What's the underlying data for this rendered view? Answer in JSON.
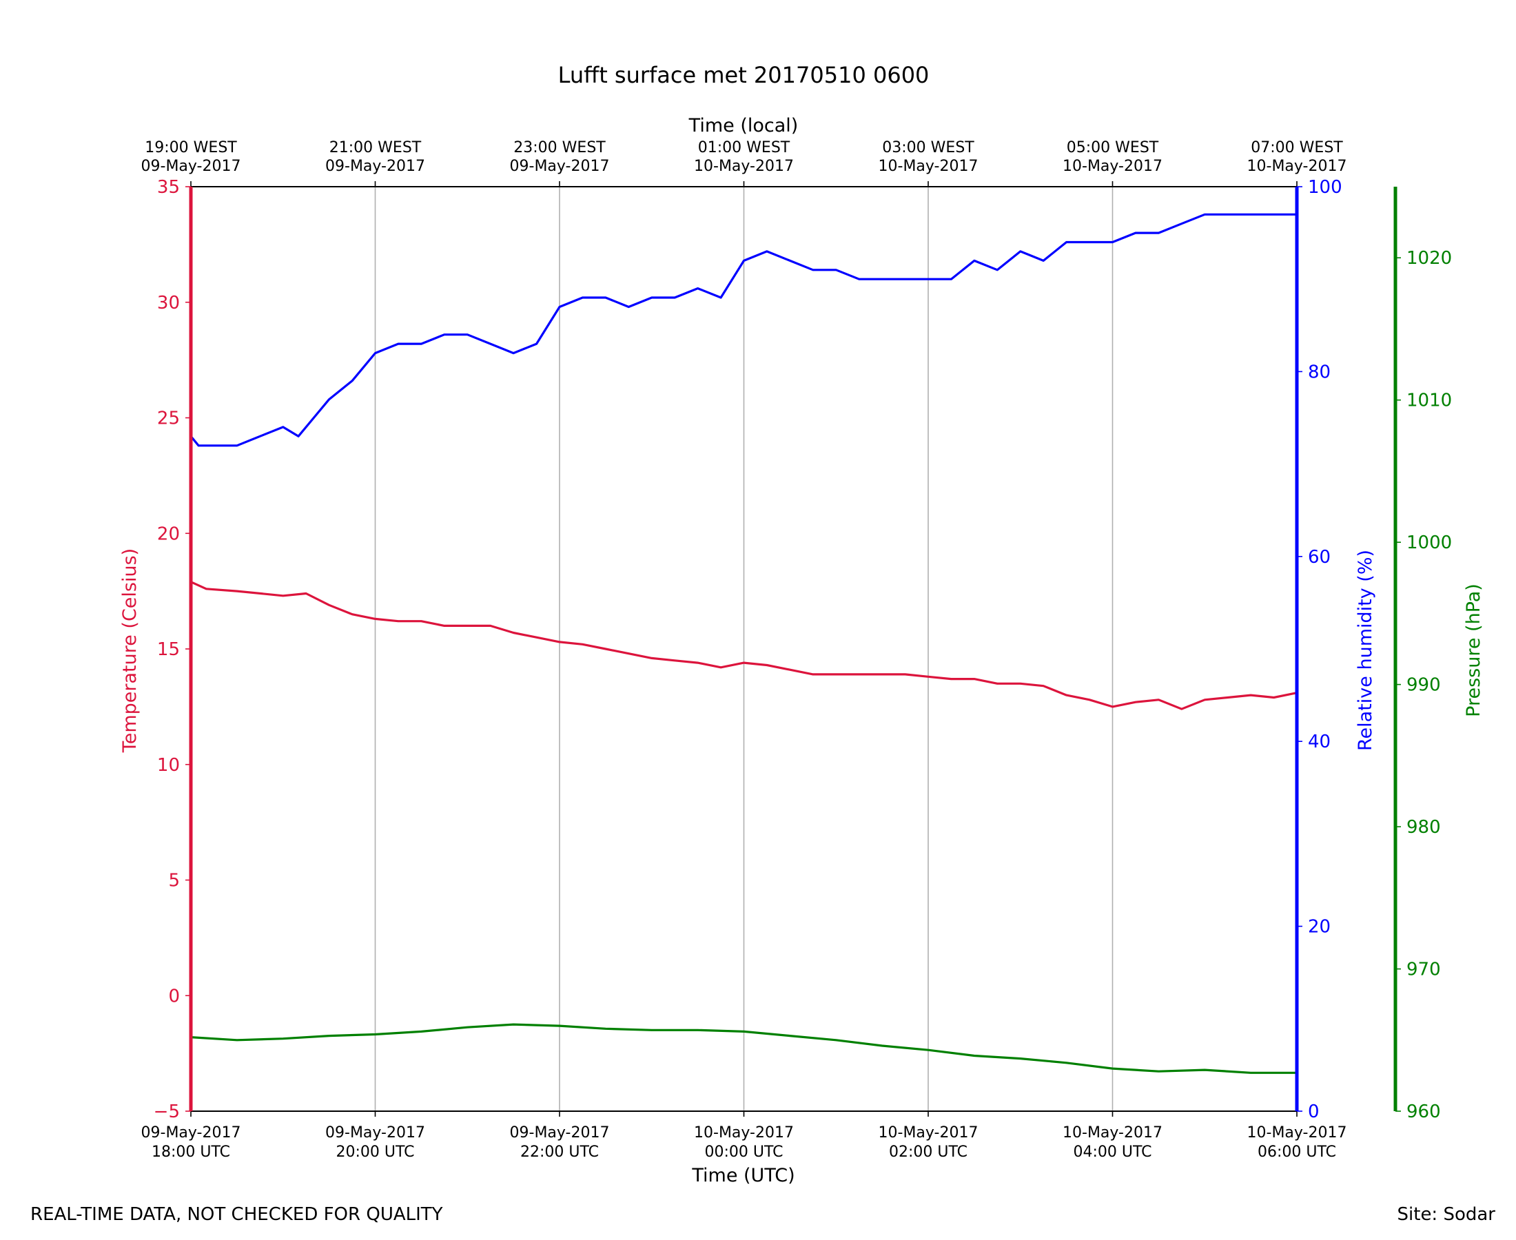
{
  "chart_data": {
    "type": "line",
    "title": "Lufft surface met 20170510 0600",
    "xlabel": "Time (UTC)",
    "x2label": "Time (local)",
    "xlim": [
      "2017-05-09T18:00",
      "2017-05-10T06:00"
    ],
    "grid": "vertical",
    "xticks": [
      {
        "t": "2017-05-09T18:00",
        "utc": [
          "09-May-2017",
          "18:00 UTC"
        ],
        "local": [
          "19:00 WEST",
          "09-May-2017"
        ]
      },
      {
        "t": "2017-05-09T20:00",
        "utc": [
          "09-May-2017",
          "20:00 UTC"
        ],
        "local": [
          "21:00 WEST",
          "09-May-2017"
        ]
      },
      {
        "t": "2017-05-09T22:00",
        "utc": [
          "09-May-2017",
          "22:00 UTC"
        ],
        "local": [
          "23:00 WEST",
          "09-May-2017"
        ]
      },
      {
        "t": "2017-05-10T00:00",
        "utc": [
          "10-May-2017",
          "00:00 UTC"
        ],
        "local": [
          "01:00 WEST",
          "10-May-2017"
        ]
      },
      {
        "t": "2017-05-10T02:00",
        "utc": [
          "10-May-2017",
          "02:00 UTC"
        ],
        "local": [
          "03:00 WEST",
          "10-May-2017"
        ]
      },
      {
        "t": "2017-05-10T04:00",
        "utc": [
          "10-May-2017",
          "04:00 UTC"
        ],
        "local": [
          "05:00 WEST",
          "10-May-2017"
        ]
      },
      {
        "t": "2017-05-10T06:00",
        "utc": [
          "10-May-2017",
          "06:00 UTC"
        ],
        "local": [
          "07:00 WEST",
          "10-May-2017"
        ]
      }
    ],
    "axes": {
      "temperature": {
        "label": "Temperature (Celsius)",
        "ylim": [
          -5,
          35
        ],
        "ticks": [
          -5,
          0,
          5,
          10,
          15,
          20,
          25,
          30,
          35
        ],
        "color": "#dc143c"
      },
      "humidity": {
        "label": "Relative humidity (%)",
        "ylim": [
          0,
          100
        ],
        "ticks": [
          0,
          20,
          40,
          60,
          80,
          100
        ],
        "color": "#0000ff"
      },
      "pressure": {
        "label": "Pressure (hPa)",
        "ylim": [
          960,
          1025
        ],
        "ticks": [
          960,
          970,
          980,
          990,
          1000,
          1010,
          1020
        ],
        "color": "#008000"
      }
    },
    "series": [
      {
        "axis": "temperature",
        "color": "#dc143c",
        "x": [
          "2017-05-09T18:00",
          "2017-05-09T18:10",
          "2017-05-09T18:30",
          "2017-05-09T19:00",
          "2017-05-09T19:15",
          "2017-05-09T19:30",
          "2017-05-09T19:45",
          "2017-05-09T20:00",
          "2017-05-09T20:15",
          "2017-05-09T20:30",
          "2017-05-09T20:45",
          "2017-05-09T21:00",
          "2017-05-09T21:15",
          "2017-05-09T21:30",
          "2017-05-09T21:45",
          "2017-05-09T22:00",
          "2017-05-09T22:15",
          "2017-05-09T22:30",
          "2017-05-09T22:45",
          "2017-05-09T23:00",
          "2017-05-09T23:15",
          "2017-05-09T23:30",
          "2017-05-09T23:45",
          "2017-05-10T00:00",
          "2017-05-10T00:15",
          "2017-05-10T00:30",
          "2017-05-10T00:45",
          "2017-05-10T01:00",
          "2017-05-10T01:15",
          "2017-05-10T01:30",
          "2017-05-10T01:45",
          "2017-05-10T02:00",
          "2017-05-10T02:15",
          "2017-05-10T02:30",
          "2017-05-10T02:45",
          "2017-05-10T03:00",
          "2017-05-10T03:15",
          "2017-05-10T03:30",
          "2017-05-10T03:45",
          "2017-05-10T04:00",
          "2017-05-10T04:15",
          "2017-05-10T04:30",
          "2017-05-10T04:45",
          "2017-05-10T05:00",
          "2017-05-10T05:15",
          "2017-05-10T05:30",
          "2017-05-10T05:45",
          "2017-05-10T06:00"
        ],
        "values": [
          17.9,
          17.6,
          17.5,
          17.3,
          17.4,
          16.9,
          16.5,
          16.3,
          16.2,
          16.2,
          16.0,
          16.0,
          16.0,
          15.7,
          15.5,
          15.3,
          15.2,
          15.0,
          14.8,
          14.6,
          14.5,
          14.4,
          14.2,
          14.4,
          14.3,
          14.1,
          13.9,
          13.9,
          13.9,
          13.9,
          13.9,
          13.8,
          13.7,
          13.7,
          13.5,
          13.5,
          13.4,
          13.0,
          12.8,
          12.5,
          12.7,
          12.8,
          12.4,
          12.8,
          12.9,
          13.0,
          12.9,
          13.1
        ]
      },
      {
        "axis": "humidity",
        "color": "#0000ff",
        "x": [
          "2017-05-09T18:00",
          "2017-05-09T18:05",
          "2017-05-09T18:15",
          "2017-05-09T18:30",
          "2017-05-09T18:45",
          "2017-05-09T19:00",
          "2017-05-09T19:10",
          "2017-05-09T19:20",
          "2017-05-09T19:30",
          "2017-05-09T19:45",
          "2017-05-09T20:00",
          "2017-05-09T20:15",
          "2017-05-09T20:30",
          "2017-05-09T20:45",
          "2017-05-09T21:00",
          "2017-05-09T21:15",
          "2017-05-09T21:30",
          "2017-05-09T21:45",
          "2017-05-09T22:00",
          "2017-05-09T22:15",
          "2017-05-09T22:30",
          "2017-05-09T22:45",
          "2017-05-09T23:00",
          "2017-05-09T23:15",
          "2017-05-09T23:30",
          "2017-05-09T23:45",
          "2017-05-10T00:00",
          "2017-05-10T00:15",
          "2017-05-10T00:30",
          "2017-05-10T00:45",
          "2017-05-10T01:00",
          "2017-05-10T01:15",
          "2017-05-10T01:30",
          "2017-05-10T01:45",
          "2017-05-10T02:00",
          "2017-05-10T02:15",
          "2017-05-10T02:30",
          "2017-05-10T02:45",
          "2017-05-10T03:00",
          "2017-05-10T03:15",
          "2017-05-10T03:30",
          "2017-05-10T03:45",
          "2017-05-10T04:00",
          "2017-05-10T04:15",
          "2017-05-10T04:30",
          "2017-05-10T04:45",
          "2017-05-10T05:00",
          "2017-05-10T05:15",
          "2017-05-10T05:30",
          "2017-05-10T05:45",
          "2017-05-10T06:00"
        ],
        "values": [
          73,
          72,
          72,
          72,
          73,
          74,
          73,
          75,
          77,
          79,
          82,
          83,
          83,
          84,
          84,
          83,
          82,
          83,
          87,
          88,
          88,
          87,
          88,
          88,
          89,
          88,
          92,
          93,
          92,
          91,
          91,
          90,
          90,
          90,
          90,
          90,
          92,
          91,
          93,
          92,
          94,
          94,
          94,
          95,
          95,
          96,
          97,
          97,
          97,
          97,
          97
        ]
      },
      {
        "axis": "pressure",
        "color": "#008000",
        "x": [
          "2017-05-09T18:00",
          "2017-05-09T18:30",
          "2017-05-09T19:00",
          "2017-05-09T19:30",
          "2017-05-09T20:00",
          "2017-05-09T20:30",
          "2017-05-09T21:00",
          "2017-05-09T21:30",
          "2017-05-09T22:00",
          "2017-05-09T22:30",
          "2017-05-09T23:00",
          "2017-05-09T23:30",
          "2017-05-10T00:00",
          "2017-05-10T00:30",
          "2017-05-10T01:00",
          "2017-05-10T01:30",
          "2017-05-10T02:00",
          "2017-05-10T02:30",
          "2017-05-10T03:00",
          "2017-05-10T03:30",
          "2017-05-10T04:00",
          "2017-05-10T04:30",
          "2017-05-10T05:00",
          "2017-05-10T05:30",
          "2017-05-10T06:00"
        ],
        "values": [
          965.2,
          965.0,
          965.1,
          965.3,
          965.4,
          965.6,
          965.9,
          966.1,
          966.0,
          965.8,
          965.7,
          965.7,
          965.6,
          965.3,
          965.0,
          964.6,
          964.3,
          963.9,
          963.7,
          963.4,
          963.0,
          962.8,
          962.9,
          962.7,
          962.7
        ]
      }
    ]
  },
  "footer": {
    "left": "REAL-TIME DATA, NOT CHECKED FOR QUALITY",
    "right": "Site: Sodar"
  }
}
